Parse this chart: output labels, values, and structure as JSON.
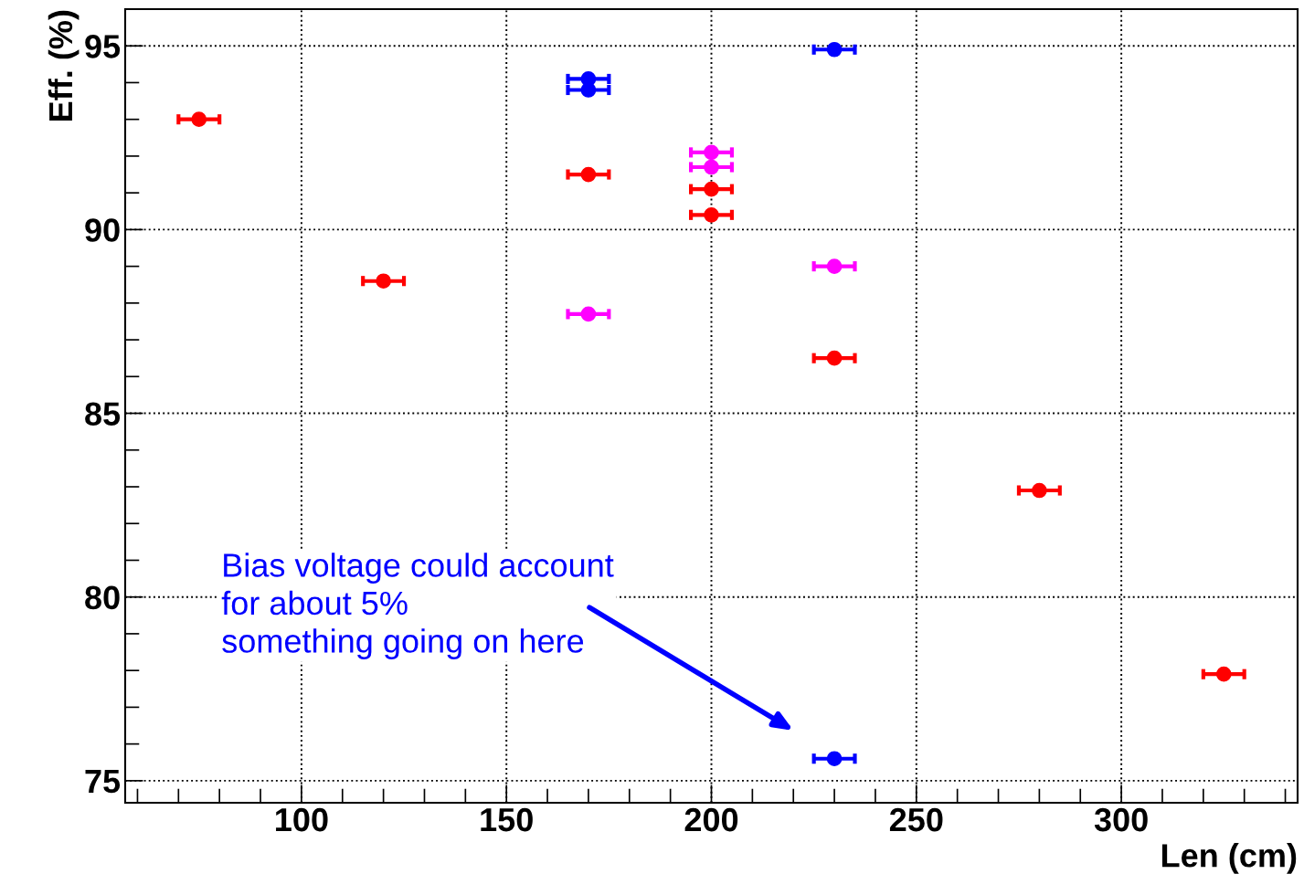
{
  "chart_data": {
    "type": "scatter",
    "xlabel": "Len (cm)",
    "ylabel": "Eff. (%)",
    "series": [
      {
        "color": "#ff0000",
        "x": [
          75,
          120,
          170,
          200,
          200,
          230,
          280,
          325
        ],
        "values": [
          93.0,
          88.6,
          91.5,
          91.1,
          90.4,
          86.5,
          82.9,
          77.9
        ],
        "xerrors": [
          5,
          5,
          5,
          5,
          5,
          5,
          5,
          5
        ]
      },
      {
        "color": "#0000ff",
        "x": [
          170,
          170,
          230,
          230
        ],
        "values": [
          94.1,
          93.8,
          94.9,
          75.6
        ],
        "xerrors": [
          5,
          5,
          5,
          5
        ]
      },
      {
        "color": "#ff00ff",
        "x": [
          200,
          200,
          170,
          230
        ],
        "values": [
          92.1,
          91.7,
          87.7,
          89.0
        ],
        "xerrors": [
          5,
          5,
          5,
          5
        ]
      }
    ],
    "xlim": [
      57,
      343
    ],
    "xticks": [
      100,
      150,
      200,
      250,
      300
    ],
    "ylim": [
      74.4,
      96
    ],
    "yticks": [
      75,
      80,
      85,
      90,
      95
    ],
    "grid": true,
    "marker": "circle",
    "annotations": [
      "Bias voltage could account\nfor about 5%\nsomething going on here"
    ]
  }
}
